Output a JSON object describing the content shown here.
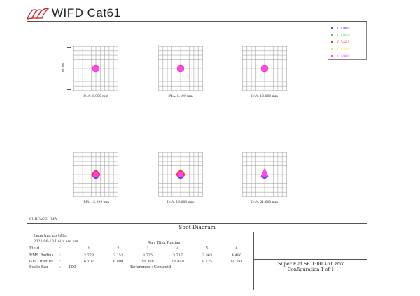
{
  "brand": {
    "name": "WIFD Cat61",
    "logo": "bird-logo-icon"
  },
  "legend": [
    {
      "label": "0.4900",
      "color": "#4a4aff"
    },
    {
      "label": "0.4850",
      "color": "#44cc44"
    },
    {
      "label": "0.5461",
      "color": "#ff3333"
    },
    {
      "label": "0.6200",
      "color": "#eeee44"
    },
    {
      "label": "0.4900",
      "color": "#ff44ff"
    }
  ],
  "scale_bar_label": "100.00",
  "spots": [
    {
      "label": "IMA: 0.000 mm",
      "pattern": "round"
    },
    {
      "label": "IMA: 6.400 mm",
      "pattern": "round"
    },
    {
      "label": "IMA: 10.000 mm",
      "pattern": "round"
    },
    {
      "label": "IMA: 15.300 mm",
      "pattern": "lobed"
    },
    {
      "label": "IMA: 18.000 mm",
      "pattern": "lobed"
    },
    {
      "label": "IMA: 21.600 mm",
      "pattern": "spiky"
    }
  ],
  "surface": "SURFACE: IMA",
  "diagram_title": "Spot Diagram",
  "info": {
    "lens_title": "Lens has no title.",
    "date_units": "2022-06-10 Units are µm.",
    "airy": "Airy Disk Radius",
    "field_label": "Field",
    "field_values": [
      "1",
      "2",
      "3",
      "4",
      "5",
      "6"
    ],
    "rms_label": "RMS Radius",
    "rms_values": [
      "2.773",
      "3.153",
      "3.775",
      "3.717",
      "3.863",
      "4.496"
    ],
    "geo_label": "GEO Radius",
    "geo_values": [
      "6.107",
      "6.899",
      "10.308",
      "10.049",
      "8.725",
      "14.591"
    ],
    "scale_label": "Scale Bar",
    "scale_value": "100",
    "reference": "Reference  :  Centroid",
    "colon": ":"
  },
  "file": {
    "name": "Super Flat SED300 X61.zmx",
    "config": "Configuration 1 of 1"
  }
}
